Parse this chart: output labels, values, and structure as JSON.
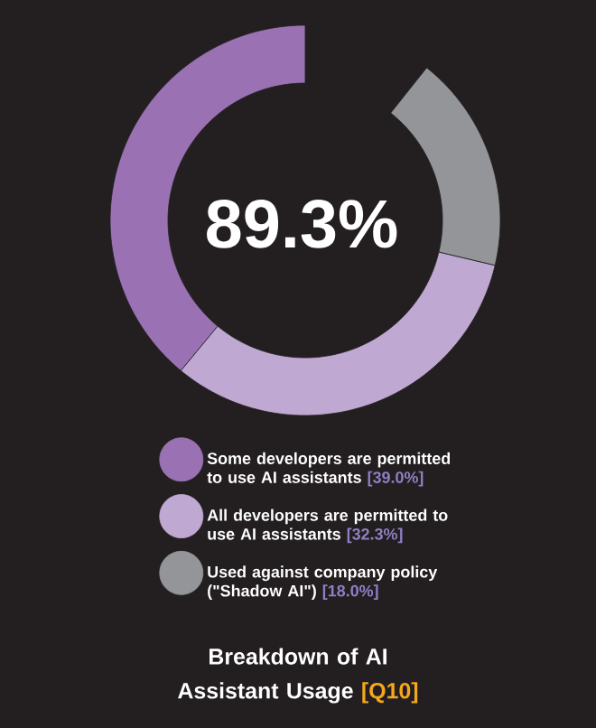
{
  "chart_data": {
    "type": "donut",
    "title": "Breakdown of AI Assistant Usage",
    "subtitle": "[Q10]",
    "categories": [
      "Some developers are permitted to use AI assistants",
      "All developers are permitted to use AI assistants",
      "Used against company policy (\"Shadow AI\")"
    ],
    "values": [
      39.0,
      32.3,
      18.0
    ],
    "value_labels": [
      "[39.0%]",
      "[32.3%]",
      "[18.0%]"
    ],
    "colors": [
      "#9a72b4",
      "#bfa9d3",
      "#939598"
    ],
    "annotations": [
      "89.3%"
    ],
    "legend": "bottom"
  }
}
